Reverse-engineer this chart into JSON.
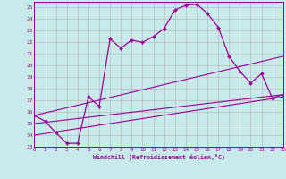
{
  "xlabel": "Windchill (Refroidissement éolien,°C)",
  "bg_color": "#c8eaea",
  "line_color": "#990099",
  "grid_color": "#b0b0b0",
  "xmin": 0,
  "xmax": 23,
  "ymin": 13,
  "ymax": 25.5,
  "yticks": [
    13,
    14,
    15,
    16,
    17,
    18,
    19,
    20,
    21,
    22,
    23,
    24,
    25
  ],
  "xticks": [
    0,
    1,
    2,
    3,
    4,
    5,
    6,
    7,
    8,
    9,
    10,
    11,
    12,
    13,
    14,
    15,
    16,
    17,
    18,
    19,
    20,
    21,
    22,
    23
  ],
  "line1_x": [
    0,
    1,
    2,
    3,
    4,
    5,
    6,
    7,
    8,
    9,
    10,
    11,
    12,
    13,
    14,
    15,
    16,
    17,
    18,
    19,
    20,
    21,
    22,
    23
  ],
  "line1_y": [
    15.7,
    15.2,
    14.2,
    13.3,
    13.3,
    17.3,
    16.5,
    22.3,
    21.5,
    22.2,
    22.0,
    22.5,
    23.2,
    24.8,
    25.2,
    25.3,
    24.5,
    23.3,
    20.8,
    19.5,
    18.5,
    19.3,
    17.2,
    17.5
  ],
  "line2_x": [
    0,
    23
  ],
  "line2_y": [
    15.7,
    20.8
  ],
  "line3_x": [
    0,
    23
  ],
  "line3_y": [
    15.0,
    17.5
  ],
  "line4_x": [
    0,
    23
  ],
  "line4_y": [
    14.0,
    17.3
  ]
}
